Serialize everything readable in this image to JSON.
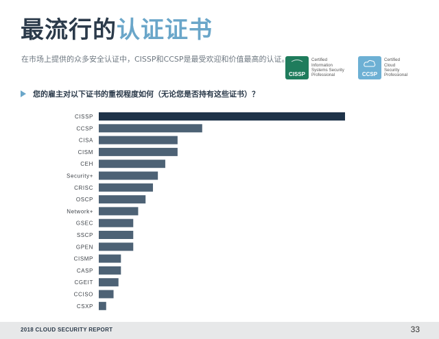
{
  "header": {
    "title_dark": "最流行的",
    "title_light": "认证证书",
    "subtitle": "在市场上提供的众多安全认证中，CISSP和CCSP是最受欢迎和价值最高的认证。"
  },
  "badges": [
    {
      "logo_text": "CISSP",
      "lines": [
        "Certified",
        "Information",
        "Systems Security",
        "Professional"
      ]
    },
    {
      "logo_text": "CCSP",
      "lines": [
        "Certified",
        "Cloud",
        "Security",
        "Professional"
      ]
    }
  ],
  "question": "您的雇主对以下证书的重视程度如何（无论您是否持有这些证书）？",
  "colors": {
    "highlight": "#1f3349",
    "bar": "#4d6275",
    "accent": "#6aa6c9"
  },
  "chart_data": {
    "type": "bar",
    "orientation": "horizontal",
    "categories": [
      "CISSP",
      "CCSP",
      "CISA",
      "CISM",
      "CEH",
      "Security+",
      "CRISC",
      "OSCP",
      "Network+",
      "GSEC",
      "SSCP",
      "GPEN",
      "CISMP",
      "CASP",
      "CGEIT",
      "CCISO",
      "CSXP"
    ],
    "values": [
      100,
      42,
      32,
      32,
      27,
      24,
      22,
      19,
      16,
      14,
      14,
      14,
      9,
      9,
      8,
      6,
      3
    ],
    "highlight": "CISSP",
    "grid": false,
    "axis_labels_shown": false
  },
  "footer": {
    "report": "2018 CLOUD SECURITY REPORT",
    "page": "33"
  }
}
